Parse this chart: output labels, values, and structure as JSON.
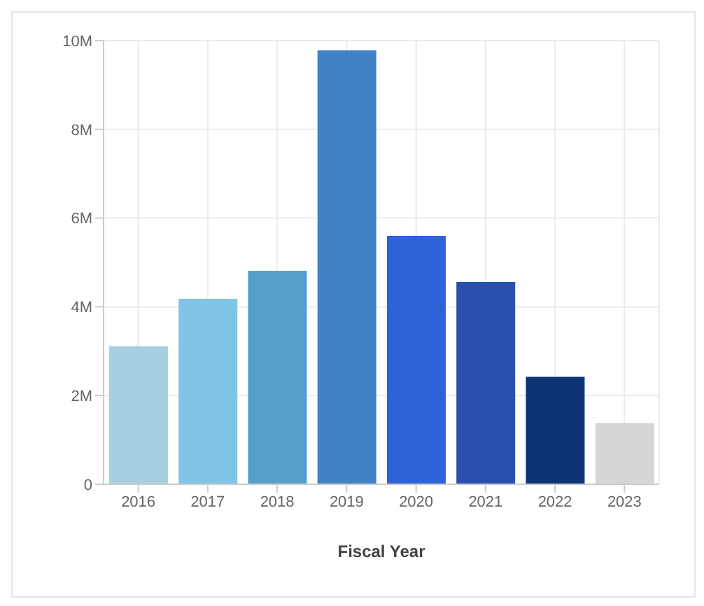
{
  "chart_data": {
    "type": "bar",
    "xlabel": "Fiscal Year",
    "categories": [
      "2016",
      "2017",
      "2018",
      "2019",
      "2020",
      "2021",
      "2022",
      "2023"
    ],
    "values": [
      3110000,
      4180000,
      4810000,
      9780000,
      5600000,
      4560000,
      2420000,
      1380000
    ],
    "colors": [
      "#a6cfe0",
      "#80c4e8",
      "#569fcb",
      "#3f82c6",
      "#2d62d9",
      "#2a4fac",
      "#0f3476",
      "#d6d6d6"
    ],
    "ylim": [
      0,
      10000000
    ],
    "yticks": [
      {
        "value": 0,
        "label": "0"
      },
      {
        "value": 2000000,
        "label": "2M"
      },
      {
        "value": 4000000,
        "label": "4M"
      },
      {
        "value": 6000000,
        "label": "6M"
      },
      {
        "value": 8000000,
        "label": "8M"
      },
      {
        "value": 10000000,
        "label": "10M"
      }
    ],
    "grid": true
  }
}
